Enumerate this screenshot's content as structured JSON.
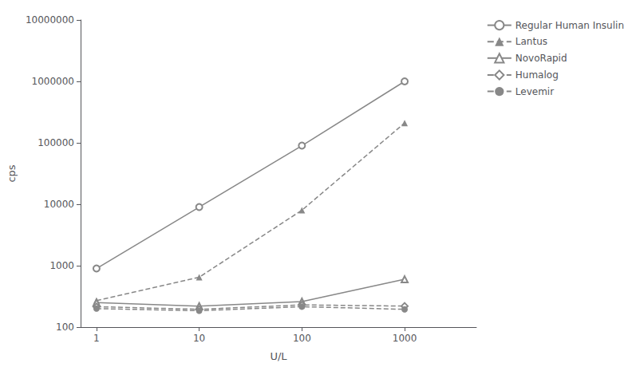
{
  "chart_data": {
    "type": "line",
    "log": true,
    "grid": false,
    "legend": "right",
    "xlabel": "U/L",
    "ylabel": "cps",
    "x": [
      1,
      10,
      100,
      1000
    ],
    "xlim": [
      0.7,
      5000
    ],
    "xticks": [
      1,
      10,
      100,
      1000
    ],
    "ylim": [
      100,
      10000000
    ],
    "yticks": [
      100,
      1000,
      10000,
      100000,
      1000000,
      10000000
    ],
    "series": [
      {
        "name": "Regular Human Insulin",
        "color": "#888888",
        "marker": "circle_open",
        "line_style": "solid",
        "values": [
          900,
          9000,
          90000,
          1000000
        ]
      },
      {
        "name": "Lantus",
        "color": "#888888",
        "marker": "triangle_filled",
        "line_style": "dashed",
        "values": [
          270,
          650,
          8000,
          210000
        ]
      },
      {
        "name": "NovoRapid",
        "color": "#888888",
        "marker": "triangle_open",
        "line_style": "solid",
        "values": [
          250,
          220,
          260,
          600
        ]
      },
      {
        "name": "Humalog",
        "color": "#888888",
        "marker": "diamond_open",
        "line_style": "dashed",
        "values": [
          215,
          195,
          230,
          220
        ]
      },
      {
        "name": "Levemir",
        "color": "#888888",
        "marker": "circle_filled",
        "line_style": "dashed",
        "values": [
          200,
          185,
          215,
          195
        ]
      }
    ]
  }
}
